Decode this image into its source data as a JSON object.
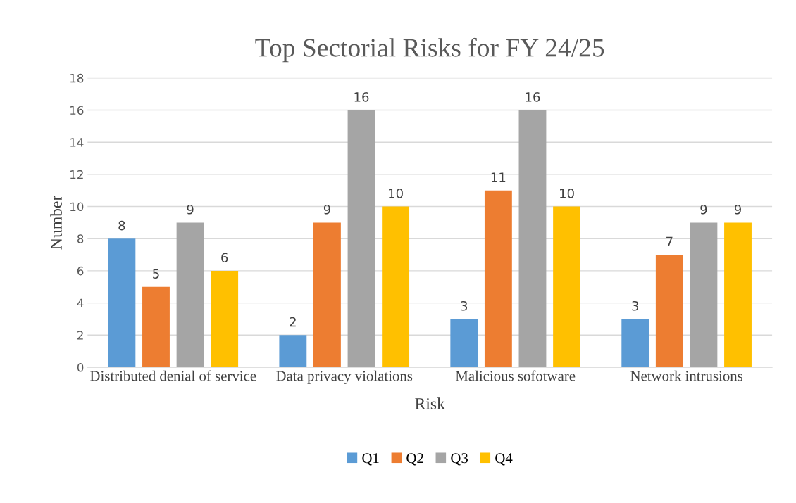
{
  "chart_data": {
    "type": "bar",
    "title": "Top Sectorial Risks for FY 24/25",
    "xlabel": "Risk",
    "ylabel": "Number",
    "categories": [
      "Distributed denial of service",
      "Data privacy violations",
      "Malicious sofotware",
      "Network intrusions"
    ],
    "series": [
      {
        "name": "Q1",
        "color": "#5b9bd5",
        "values": [
          8,
          2,
          3,
          3
        ]
      },
      {
        "name": "Q2",
        "color": "#ed7d31",
        "values": [
          5,
          9,
          11,
          7
        ]
      },
      {
        "name": "Q3",
        "color": "#a5a5a5",
        "values": [
          9,
          16,
          16,
          9
        ]
      },
      {
        "name": "Q4",
        "color": "#ffc000",
        "values": [
          6,
          10,
          10,
          9
        ]
      }
    ],
    "ylim": [
      0,
      18
    ],
    "yticks": [
      0,
      2,
      4,
      6,
      8,
      10,
      12,
      14,
      16,
      18
    ],
    "grid": "y",
    "legend": "bottom",
    "data_labels": true
  }
}
